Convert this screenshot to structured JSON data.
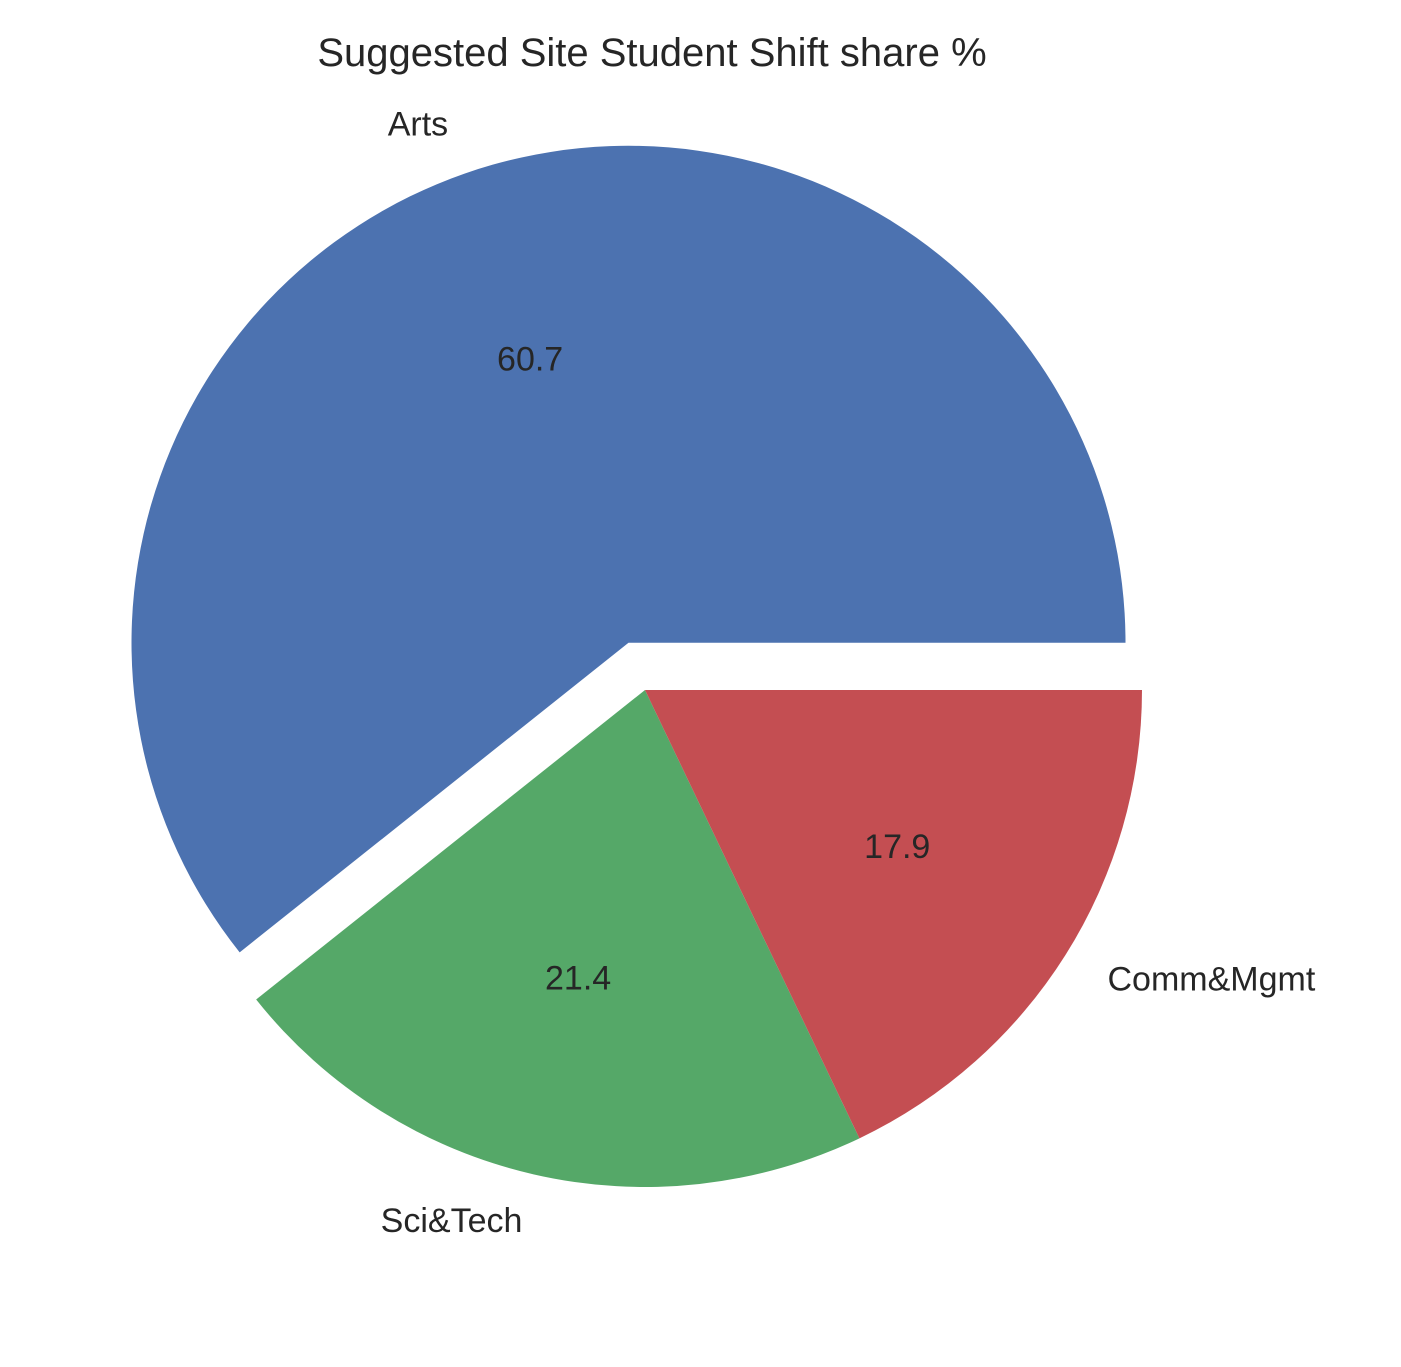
{
  "chart_data": {
    "type": "pie",
    "title": "Suggested Site Student Shift share %",
    "categories": [
      "Arts",
      "Sci&Tech",
      "Comm&Mgmt"
    ],
    "values": [
      60.7,
      21.4,
      17.9
    ],
    "value_labels": [
      "60.7",
      "21.4",
      "17.9"
    ],
    "colors": [
      "#4c72b0",
      "#55a868",
      "#c44e52"
    ],
    "exploded": [
      "Arts"
    ],
    "start_angle_deg": 0,
    "direction": "counterclockwise",
    "legend": "none"
  }
}
